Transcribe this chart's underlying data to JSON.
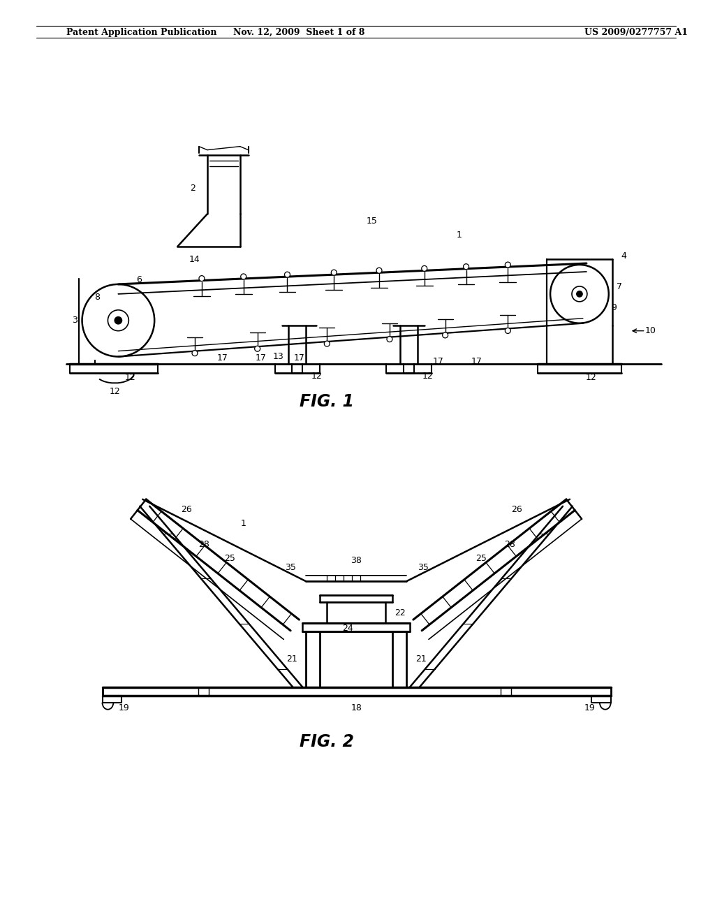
{
  "bg_color": "#ffffff",
  "header_left": "Patent Application Publication",
  "header_mid": "Nov. 12, 2009  Sheet 1 of 8",
  "header_right": "US 2009/0277757 A1",
  "fig1_label": "FIG. 1",
  "fig2_label": "FIG. 2"
}
